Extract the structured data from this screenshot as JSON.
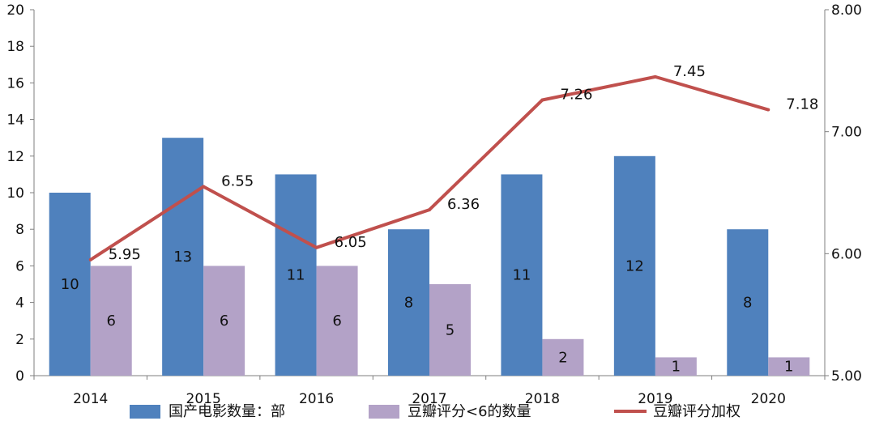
{
  "chart_data": {
    "type": "bar",
    "title": "",
    "categories": [
      "2014",
      "2015",
      "2016",
      "2017",
      "2018",
      "2019",
      "2020"
    ],
    "series": [
      {
        "name": "国产电影数量：部",
        "type": "bar",
        "axis": "left",
        "color": "#4f81bd",
        "values": [
          10,
          13,
          11,
          8,
          11,
          12,
          8
        ],
        "labels": [
          "10",
          "13",
          "11",
          "8",
          "11",
          "12",
          "8"
        ]
      },
      {
        "name": "豆瓣评分<6的数量",
        "type": "bar",
        "axis": "left",
        "color": "#b3a2c7",
        "values": [
          6,
          6,
          6,
          5,
          2,
          1,
          1
        ],
        "labels": [
          "6",
          "6",
          "6",
          "5",
          "2",
          "1",
          "1"
        ]
      },
      {
        "name": "豆瓣评分加权",
        "type": "line",
        "axis": "right",
        "color": "#c0504d",
        "values": [
          5.95,
          6.55,
          6.05,
          6.36,
          7.26,
          7.45,
          7.18
        ],
        "labels": [
          "5.95",
          "6.55",
          "6.05",
          "6.36",
          "7.26",
          "7.45",
          "7.18"
        ]
      }
    ],
    "y_left": {
      "min": 0,
      "max": 20,
      "ticks": [
        "0",
        "2",
        "4",
        "6",
        "8",
        "10",
        "12",
        "14",
        "16",
        "18",
        "20"
      ]
    },
    "y_right": {
      "min": 5,
      "max": 8,
      "ticks": [
        "5.00",
        "6.00",
        "7.00",
        "8.00"
      ]
    },
    "grid": false,
    "legend_position": "bottom"
  }
}
